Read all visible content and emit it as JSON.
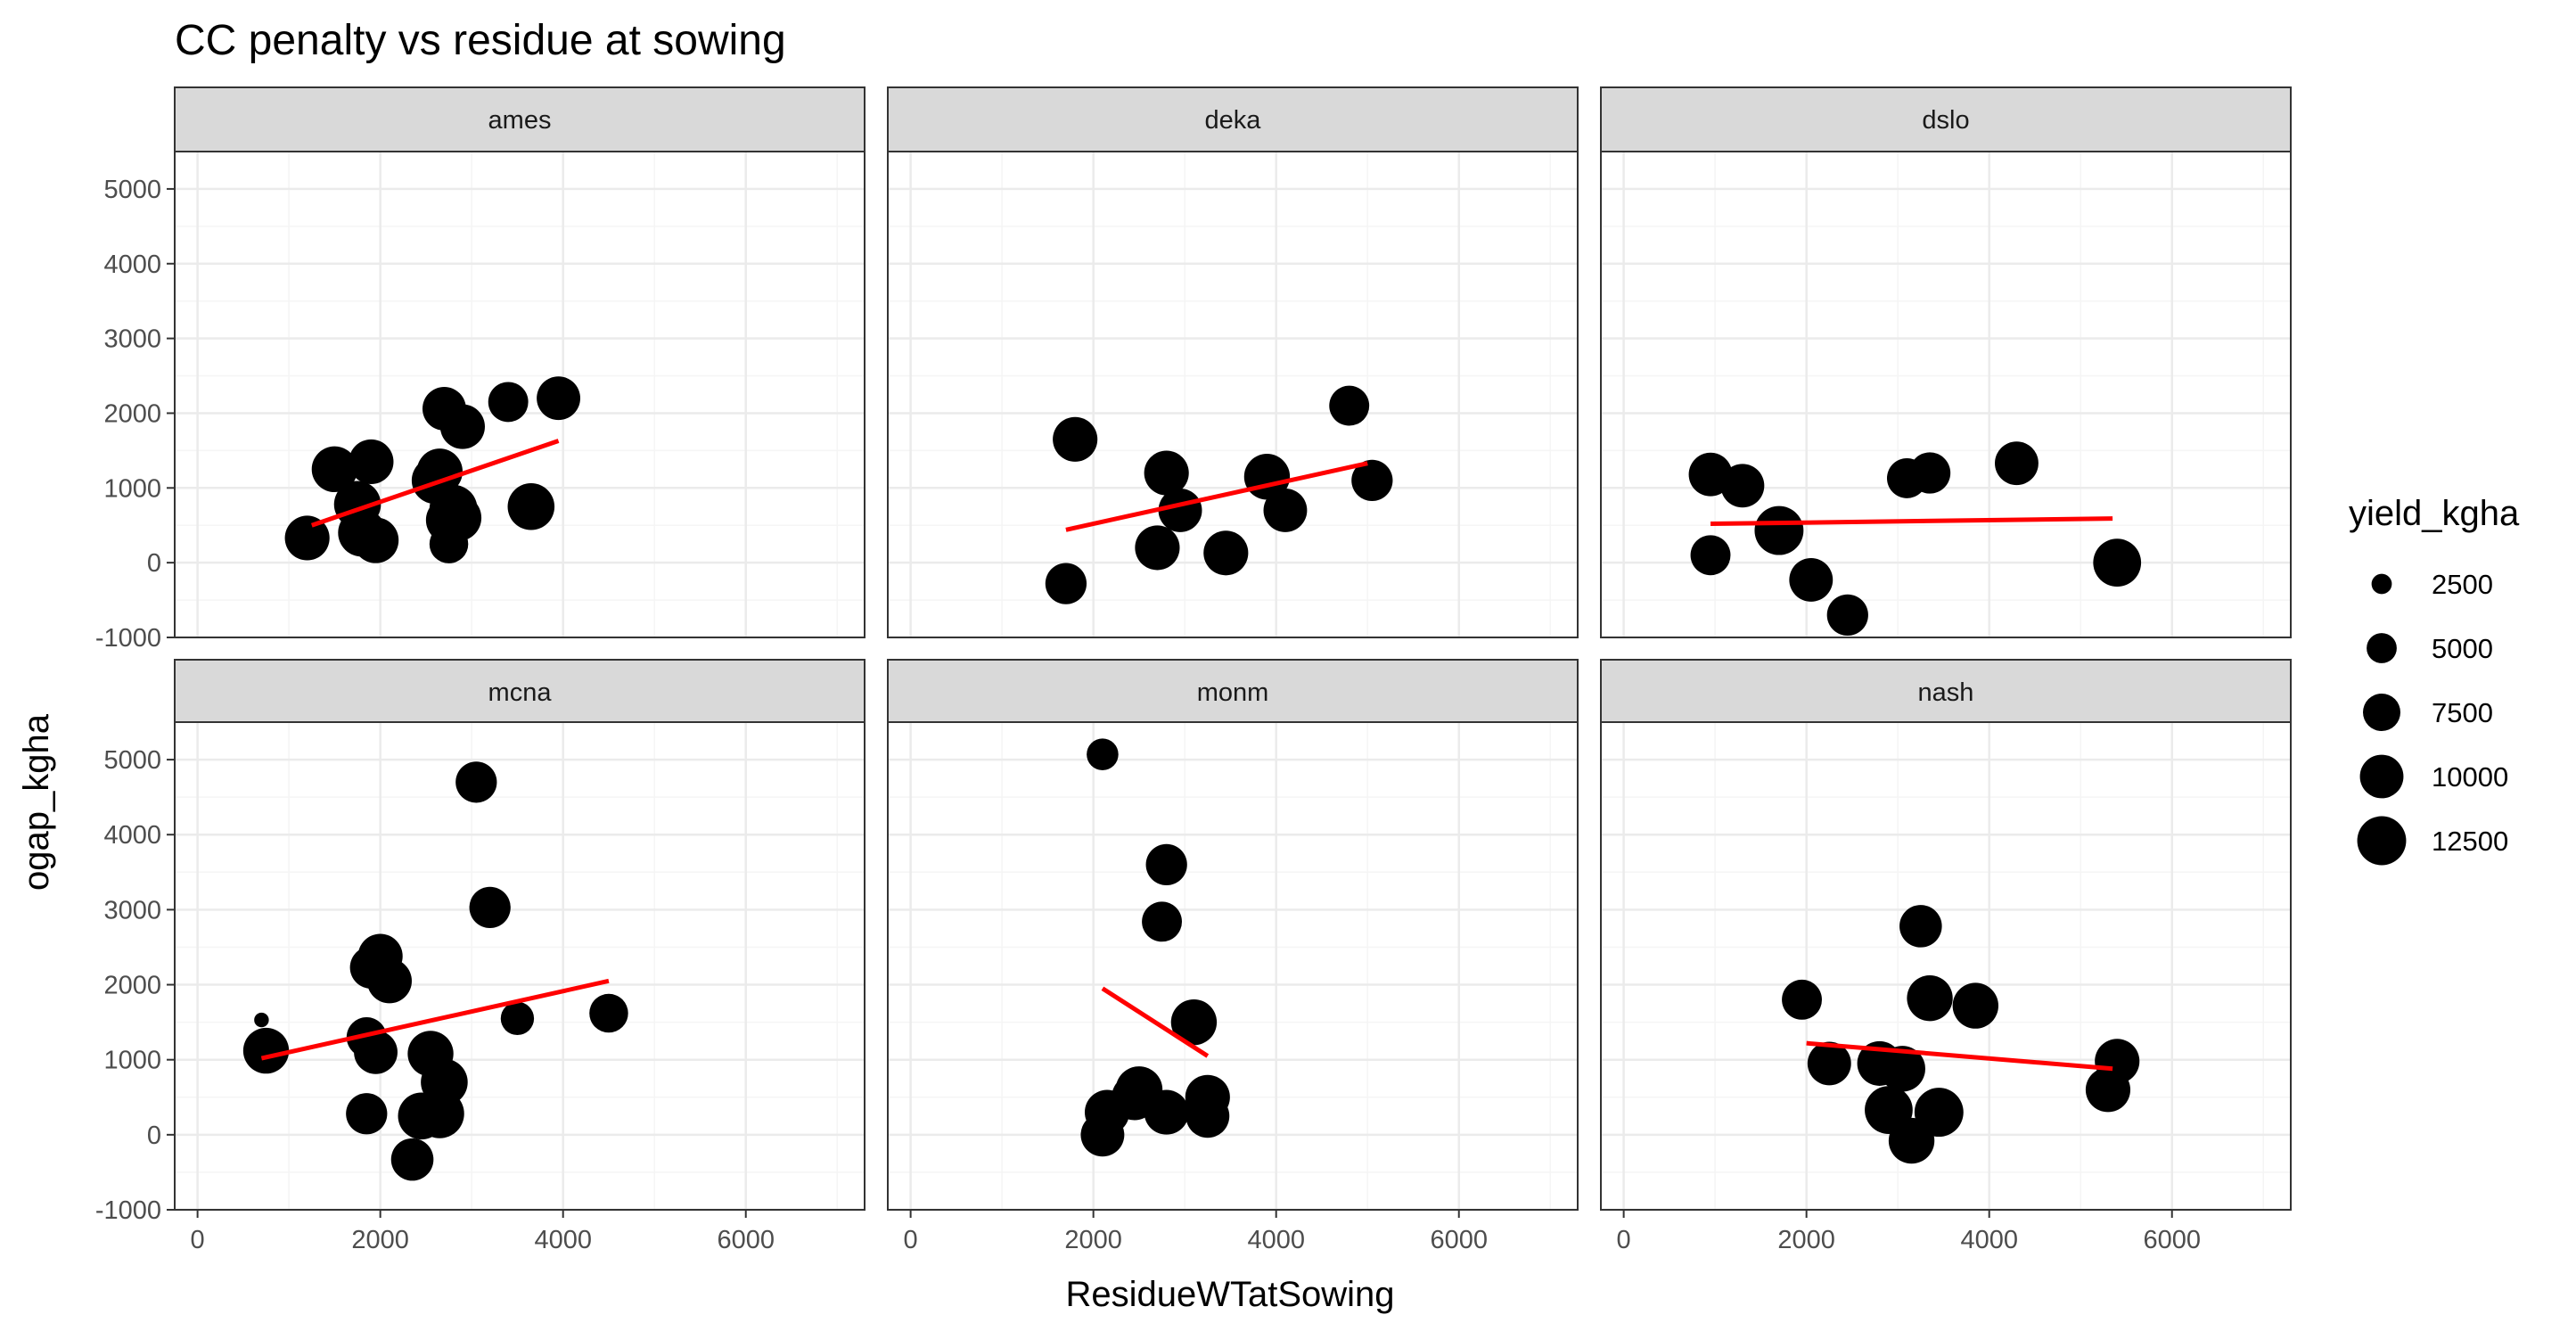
{
  "chart_data": {
    "type": "scatter",
    "title": "CC penalty vs residue at sowing",
    "xlabel": "ResidueWTatSowing",
    "ylabel": "ogap_kgha",
    "xlim": [
      -250,
      7300
    ],
    "ylim": [
      -1000,
      5500
    ],
    "x_ticks": [
      0,
      2000,
      4000,
      6000
    ],
    "y_ticks": [
      -1000,
      0,
      1000,
      2000,
      3000,
      4000,
      5000
    ],
    "grid": true,
    "facet_layout": {
      "rows": 2,
      "cols": 3
    },
    "legend": {
      "title": "yield_kgha",
      "placement": "right",
      "entries": [
        {
          "label": "2500",
          "value": 2500
        },
        {
          "label": "5000",
          "value": 5000
        },
        {
          "label": "7500",
          "value": 7500
        },
        {
          "label": "10000",
          "value": 10000
        },
        {
          "label": "12500",
          "value": 12500
        }
      ]
    },
    "size_range": [
      1000,
      13000
    ],
    "colors": {
      "point": "#000000",
      "trend": "#ff0000",
      "strip_bg": "#d9d9d9",
      "grid_major": "#ebebeb",
      "grid_minor": "#f5f5f5",
      "panel_border": "#333333"
    },
    "panels": [
      {
        "name": "ames",
        "trend": [
          [
            1250,
            500
          ],
          [
            3950,
            1630
          ]
        ],
        "points": [
          [
            1200,
            330,
            10500
          ],
          [
            1500,
            1250,
            11000
          ],
          [
            1750,
            780,
            11500
          ],
          [
            1800,
            400,
            12000
          ],
          [
            1900,
            1350,
            10500
          ],
          [
            1950,
            300,
            11000
          ],
          [
            2600,
            1100,
            11500
          ],
          [
            2650,
            1220,
            11000
          ],
          [
            2700,
            2060,
            10000
          ],
          [
            2750,
            250,
            8000
          ],
          [
            2750,
            570,
            11000
          ],
          [
            2800,
            720,
            12000
          ],
          [
            2850,
            600,
            11500
          ],
          [
            2900,
            1820,
            10500
          ],
          [
            3400,
            2150,
            8500
          ],
          [
            3650,
            750,
            11500
          ],
          [
            3950,
            2200,
            10000
          ]
        ]
      },
      {
        "name": "deka",
        "trend": [
          [
            1700,
            440
          ],
          [
            5000,
            1330
          ]
        ],
        "points": [
          [
            1700,
            -280,
            9000
          ],
          [
            1800,
            1650,
            10500
          ],
          [
            2700,
            200,
            10500
          ],
          [
            2800,
            1200,
            10500
          ],
          [
            2950,
            700,
            10000
          ],
          [
            3450,
            130,
            10500
          ],
          [
            3900,
            1150,
            11000
          ],
          [
            4100,
            700,
            10000
          ],
          [
            4800,
            2100,
            8500
          ],
          [
            5050,
            1100,
            9000
          ]
        ]
      },
      {
        "name": "dslo",
        "trend": [
          [
            950,
            520
          ],
          [
            5350,
            590
          ]
        ],
        "points": [
          [
            950,
            1180,
            10000
          ],
          [
            950,
            100,
            8500
          ],
          [
            1300,
            1030,
            10000
          ],
          [
            1700,
            430,
            12500
          ],
          [
            2050,
            -230,
            10000
          ],
          [
            2450,
            -700,
            9000
          ],
          [
            3100,
            1130,
            8500
          ],
          [
            3350,
            1200,
            9000
          ],
          [
            4300,
            1330,
            10000
          ],
          [
            5400,
            0,
            12000
          ]
        ]
      },
      {
        "name": "mcna",
        "trend": [
          [
            700,
            1020
          ],
          [
            4500,
            2050
          ]
        ],
        "points": [
          [
            700,
            1530,
            1500
          ],
          [
            750,
            1120,
            11000
          ],
          [
            1850,
            1300,
            8500
          ],
          [
            1850,
            280,
            9000
          ],
          [
            1900,
            2230,
            9500
          ],
          [
            1950,
            1100,
            10000
          ],
          [
            2000,
            2380,
            10500
          ],
          [
            2100,
            2050,
            10500
          ],
          [
            2350,
            -330,
            9500
          ],
          [
            2450,
            250,
            11500
          ],
          [
            2550,
            1080,
            11000
          ],
          [
            2650,
            280,
            12500
          ],
          [
            2700,
            700,
            11500
          ],
          [
            3050,
            4700,
            9000
          ],
          [
            3200,
            3030,
            9000
          ],
          [
            3500,
            1550,
            6000
          ],
          [
            4500,
            1620,
            8000
          ]
        ]
      },
      {
        "name": "monm",
        "trend": [
          [
            2100,
            1950
          ],
          [
            3250,
            1050
          ]
        ],
        "points": [
          [
            2100,
            5070,
            5500
          ],
          [
            2100,
            0,
            10000
          ],
          [
            2150,
            300,
            10500
          ],
          [
            2450,
            500,
            11000
          ],
          [
            2500,
            600,
            11500
          ],
          [
            2750,
            2840,
            8500
          ],
          [
            2800,
            300,
            10500
          ],
          [
            2800,
            3600,
            9000
          ],
          [
            3100,
            1500,
            11000
          ],
          [
            3250,
            500,
            10500
          ],
          [
            3250,
            250,
            10000
          ]
        ]
      },
      {
        "name": "nash",
        "trend": [
          [
            2000,
            1220
          ],
          [
            5350,
            880
          ]
        ],
        "points": [
          [
            1950,
            1800,
            8500
          ],
          [
            2250,
            950,
            10000
          ],
          [
            2800,
            950,
            10500
          ],
          [
            2900,
            330,
            12000
          ],
          [
            3050,
            880,
            11000
          ],
          [
            3150,
            -80,
            11000
          ],
          [
            3250,
            2780,
            9500
          ],
          [
            3350,
            1820,
            11000
          ],
          [
            3450,
            300,
            12500
          ],
          [
            3850,
            1720,
            11000
          ],
          [
            5300,
            600,
            10500
          ],
          [
            5400,
            980,
            10500
          ]
        ]
      }
    ]
  }
}
